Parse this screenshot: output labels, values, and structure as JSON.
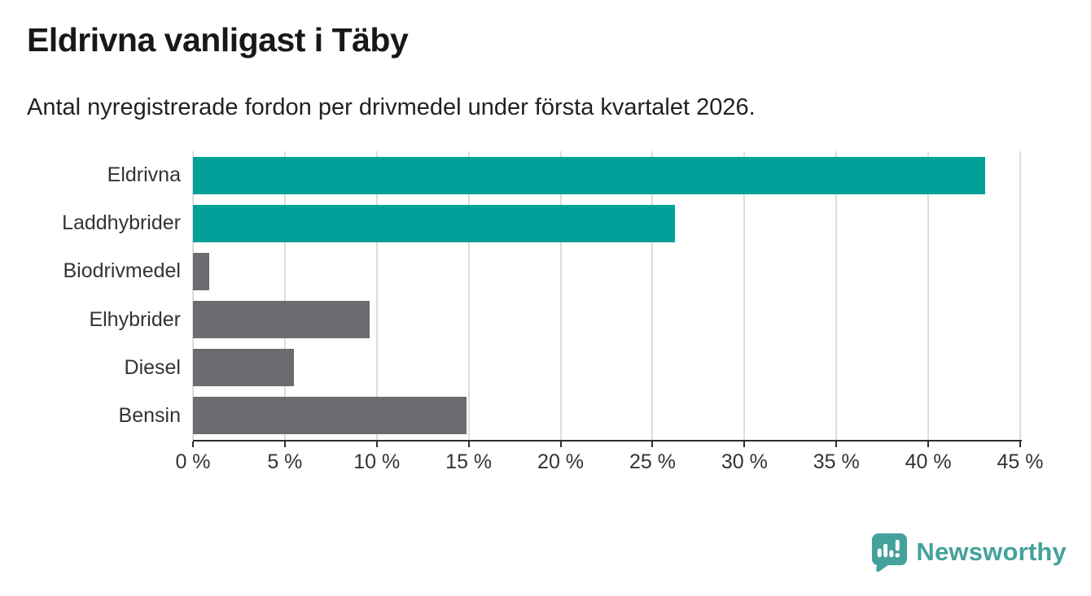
{
  "header": {
    "title": "Eldrivna vanligast i Täby",
    "subtitle": "Antal nyregistrerade fordon per drivmedel under första kvartalet 2026."
  },
  "chart_data": {
    "type": "bar",
    "orientation": "horizontal",
    "title": "Eldrivna vanligast i Täby",
    "subtitle": "Antal nyregistrerade fordon per drivmedel under första kvartalet 2026.",
    "categories": [
      "Eldrivna",
      "Laddhybrider",
      "Biodrivmedel",
      "Elhybrider",
      "Diesel",
      "Bensin"
    ],
    "values": [
      43.1,
      26.2,
      0.9,
      9.6,
      5.5,
      14.9
    ],
    "unit": "%",
    "bar_colors": [
      "#00a098",
      "#00a098",
      "#6b6b70",
      "#6b6b70",
      "#6b6b70",
      "#6b6b70"
    ],
    "xlim": [
      0,
      45
    ],
    "x_ticks": [
      0,
      5,
      10,
      15,
      20,
      25,
      30,
      35,
      40,
      45
    ],
    "x_tick_labels": [
      "0 %",
      "5 %",
      "10 %",
      "15 %",
      "20 %",
      "25 %",
      "30 %",
      "35 %",
      "40 %",
      "45 %"
    ],
    "grid": "vertical-gridlines-on",
    "legend": "none",
    "ylabel": "",
    "xlabel": ""
  },
  "colors": {
    "teal": "#00a098",
    "gray": "#6b6b70",
    "gridline": "#dcdcdc",
    "axis_line": "#2e2e2e",
    "tick_text": "#333333",
    "logo_teal": "#43a29b"
  },
  "logo": {
    "text": "Newsworthy"
  }
}
